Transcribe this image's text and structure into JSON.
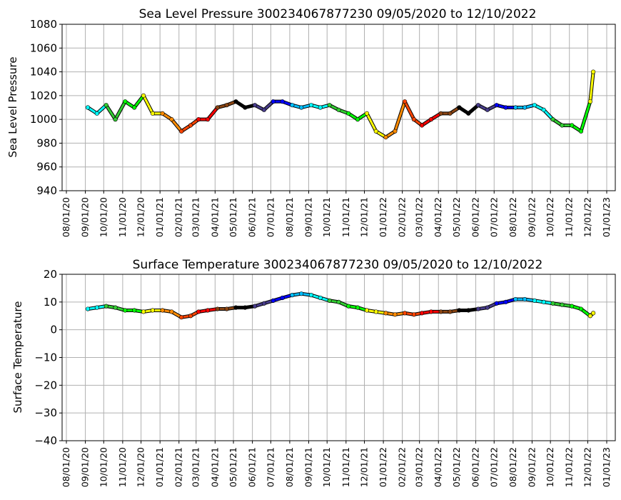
{
  "chart_data": [
    {
      "type": "scatter",
      "title": "Sea Level Pressure 300234067877230  09/05/2020 to 12/10/2022",
      "xlabel": "",
      "ylabel": "Sea Level Pressure",
      "ylim": [
        940,
        1080
      ],
      "yticks": [
        940,
        960,
        980,
        1000,
        1020,
        1040,
        1060,
        1080
      ],
      "xlim": [
        "07/25/20",
        "01/15/23"
      ],
      "xticks": [
        "08/01/20",
        "09/01/20",
        "10/01/20",
        "11/01/20",
        "12/01/20",
        "01/01/21",
        "02/01/21",
        "03/01/21",
        "04/01/21",
        "05/01/21",
        "06/01/21",
        "07/01/21",
        "08/01/21",
        "09/01/21",
        "10/01/21",
        "11/01/21",
        "12/01/21",
        "01/01/22",
        "02/01/22",
        "03/01/22",
        "04/01/22",
        "05/01/22",
        "06/01/22",
        "07/01/22",
        "08/01/22",
        "09/01/22",
        "10/01/22",
        "11/01/22",
        "12/01/22",
        "01/01/23"
      ],
      "grid": true,
      "color_by_month": true,
      "month_colors": [
        "#ff8c00",
        "#ff4500",
        "#ff0000",
        "#8b4513",
        "#000000",
        "#483d8b",
        "#0000ff",
        "#00bfff",
        "#00ffff",
        "#32cd32",
        "#00ff00",
        "#ffff00"
      ],
      "x": [
        "09/05/20",
        "09/20/20",
        "10/05/20",
        "10/20/20",
        "11/05/20",
        "11/20/20",
        "12/05/20",
        "12/20/20",
        "01/05/21",
        "01/20/21",
        "02/05/21",
        "02/20/21",
        "03/05/21",
        "03/20/21",
        "04/05/21",
        "04/20/21",
        "05/05/21",
        "05/20/21",
        "06/05/21",
        "06/20/21",
        "07/05/21",
        "07/20/21",
        "08/05/21",
        "08/20/21",
        "09/05/21",
        "09/20/21",
        "10/05/21",
        "10/20/21",
        "11/05/21",
        "11/20/21",
        "12/05/21",
        "12/20/21",
        "01/05/22",
        "01/20/22",
        "02/05/22",
        "02/20/22",
        "03/05/22",
        "03/20/22",
        "04/05/22",
        "04/20/22",
        "05/05/22",
        "05/20/22",
        "06/05/22",
        "06/20/22",
        "07/05/22",
        "07/20/22",
        "08/05/22",
        "08/20/22",
        "09/05/22",
        "09/20/22",
        "10/05/22",
        "10/20/22",
        "11/05/22",
        "11/20/22",
        "12/05/22",
        "12/10/22"
      ],
      "y": [
        1010,
        1005,
        1012,
        1000,
        1015,
        1010,
        1020,
        1005,
        1005,
        1000,
        990,
        995,
        1000,
        1000,
        1010,
        1012,
        1015,
        1010,
        1012,
        1008,
        1015,
        1015,
        1012,
        1010,
        1012,
        1010,
        1012,
        1008,
        1005,
        1000,
        1005,
        990,
        985,
        990,
        1015,
        1000,
        995,
        1000,
        1005,
        1005,
        1010,
        1005,
        1012,
        1008,
        1012,
        1010,
        1010,
        1010,
        1012,
        1008,
        1000,
        995,
        995,
        990,
        1015,
        1040
      ]
    },
    {
      "type": "scatter",
      "title": "Surface Temperature 300234067877230  09/05/2020 to 12/10/2022",
      "xlabel": "",
      "ylabel": "Surface Temperature",
      "ylim": [
        -40,
        20
      ],
      "yticks": [
        -40,
        -30,
        -20,
        -10,
        0,
        10,
        20
      ],
      "xlim": [
        "07/25/20",
        "01/15/23"
      ],
      "xticks": [
        "08/01/20",
        "09/01/20",
        "10/01/20",
        "11/01/20",
        "12/01/20",
        "01/01/21",
        "02/01/21",
        "03/01/21",
        "04/01/21",
        "05/01/21",
        "06/01/21",
        "07/01/21",
        "08/01/21",
        "09/01/21",
        "10/01/21",
        "11/01/21",
        "12/01/21",
        "01/01/22",
        "02/01/22",
        "03/01/22",
        "04/01/22",
        "05/01/22",
        "06/01/22",
        "07/01/22",
        "08/01/22",
        "09/01/22",
        "10/01/22",
        "11/01/22",
        "12/01/22",
        "01/01/23"
      ],
      "grid": true,
      "color_by_month": true,
      "month_colors": [
        "#ff8c00",
        "#ff4500",
        "#ff0000",
        "#8b4513",
        "#000000",
        "#483d8b",
        "#0000ff",
        "#00bfff",
        "#00ffff",
        "#32cd32",
        "#00ff00",
        "#ffff00"
      ],
      "x": [
        "09/05/20",
        "09/20/20",
        "10/05/20",
        "10/20/20",
        "11/05/20",
        "11/20/20",
        "12/05/20",
        "12/20/20",
        "01/05/21",
        "01/20/21",
        "02/05/21",
        "02/20/21",
        "03/05/21",
        "03/20/21",
        "04/05/21",
        "04/20/21",
        "05/05/21",
        "05/20/21",
        "06/05/21",
        "06/20/21",
        "07/05/21",
        "07/20/21",
        "08/05/21",
        "08/20/21",
        "09/05/21",
        "09/20/21",
        "10/05/21",
        "10/20/21",
        "11/05/21",
        "11/20/21",
        "12/05/21",
        "12/20/21",
        "01/05/22",
        "01/20/22",
        "02/05/22",
        "02/20/22",
        "03/05/22",
        "03/20/22",
        "04/05/22",
        "04/20/22",
        "05/05/22",
        "05/20/22",
        "06/05/22",
        "06/20/22",
        "07/05/22",
        "07/20/22",
        "08/05/22",
        "08/20/22",
        "09/05/22",
        "09/20/22",
        "10/05/22",
        "10/20/22",
        "11/05/22",
        "11/20/22",
        "12/05/22",
        "12/10/22"
      ],
      "y": [
        7.5,
        8,
        8.5,
        8,
        7,
        7,
        6.5,
        7,
        7,
        6.5,
        4.5,
        5,
        6.5,
        7,
        7.5,
        7.5,
        8,
        8,
        8.5,
        9.5,
        10.5,
        11.5,
        12.5,
        13,
        12.5,
        11.5,
        10.5,
        10,
        8.5,
        8,
        7,
        6.5,
        6,
        5.5,
        6,
        5.5,
        6,
        6.5,
        6.5,
        6.5,
        7,
        7,
        7.5,
        8,
        9.5,
        10,
        11,
        11,
        10.5,
        10,
        9.5,
        9,
        8.5,
        7.5,
        5,
        6
      ]
    }
  ]
}
